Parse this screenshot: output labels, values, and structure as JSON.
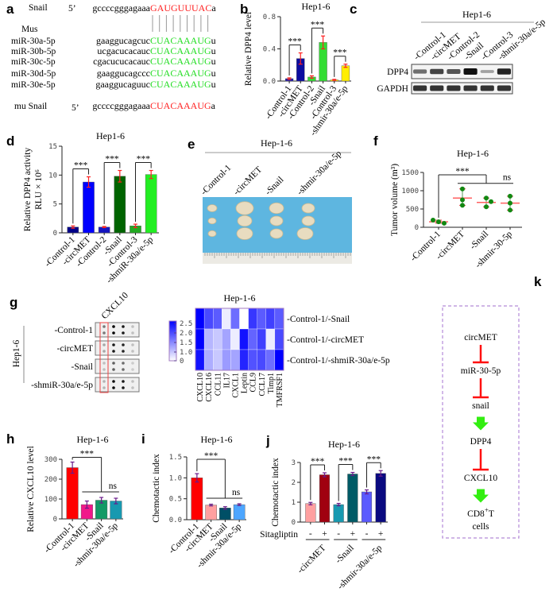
{
  "panel_labels": {
    "a": "a",
    "b": "b",
    "c": "c",
    "d": "d",
    "e": "e",
    "f": "f",
    "g": "g",
    "h": "h",
    "i": "i",
    "j": "j",
    "k": "k"
  },
  "panel_a": {
    "snail": {
      "name": "Snail",
      "five_prime": "5’",
      "prefix": "gccccgggagaaa",
      "seed": "GAUGUUUAC",
      "suffix": "a"
    },
    "species": "Mus",
    "mirnas": [
      {
        "name": "miR-30a-5p",
        "prefix": "gaaggucagcuc",
        "seed": "CUACAAAUG",
        "suffix": "u"
      },
      {
        "name": "miR-30b-5p",
        "prefix": "ucgacucacauc",
        "seed": "CUACAAAUG",
        "suffix": "u"
      },
      {
        "name": "miR-30c-5p",
        "prefix": "cgacucucacauc",
        "seed": "CUACAAAUG",
        "suffix": "u"
      },
      {
        "name": "miR-30d-5p",
        "prefix": "gaaggucagccc",
        "seed": "CUACAAAUG",
        "suffix": "u"
      },
      {
        "name": "miR-30e-5p",
        "prefix": "gaaggucaguuc",
        "seed": "CUACAAAUG",
        "suffix": "u"
      }
    ],
    "mu_snail": {
      "name": "mu  Snail",
      "five_prime": "5’",
      "prefix": "gccccgggagaaa",
      "seed": "CUACAAAUG",
      "suffix": "a"
    },
    "colors": {
      "target": "#ff2020",
      "seed": "#22dd22"
    }
  },
  "panel_c": {
    "title": "Hep1-6",
    "lanes": [
      "-Control-1",
      "-circMET",
      "-Control-2",
      "-Snail",
      "-Control-3",
      "-shmir-30a/e-5p"
    ],
    "rows": [
      {
        "label": "DPP4",
        "band_intensity": [
          0.45,
          0.7,
          0.6,
          1.0,
          0.15,
          0.9
        ]
      },
      {
        "label": "GAPDH",
        "band_intensity": [
          0.8,
          0.8,
          0.8,
          0.8,
          0.8,
          0.8
        ]
      }
    ]
  },
  "panel_e": {
    "title": "Hep-1-6",
    "lanes": [
      "-Control-1",
      "-circMET",
      "-Snail",
      "-shmir-30a/e-5p"
    ]
  },
  "panel_g": {
    "group_label": "Hep1-6",
    "column_label": "CXCL10",
    "rows": [
      "-Control-1",
      "-circMET",
      "-Snail",
      "-shmiR-30a/e-5p"
    ]
  },
  "panel_k": {
    "nodes": [
      {
        "label": "circMET"
      },
      {
        "label": "miR-30-5p"
      },
      {
        "label": "snail"
      },
      {
        "label": "DPP4"
      },
      {
        "label": "CXCL10"
      },
      {
        "label": "CD8",
        "sup": "+",
        "suffix": "T",
        "line2": "cells"
      }
    ],
    "edges": [
      "inhibit",
      "inhibit",
      "activate",
      "inhibit",
      "activate"
    ],
    "colors": {
      "inhibit": "#ff1010",
      "activate": "#33ee11",
      "border": "#b48ad8"
    }
  },
  "chart_data": [
    {
      "panel": "b",
      "type": "bar",
      "title": "Hep1-6",
      "ylabel": "Relative DPP4 level",
      "ylim": [
        0,
        0.8
      ],
      "yticks": [
        0,
        0.4,
        0.8
      ],
      "ytick_labels": [
        "0.0",
        "0.4",
        "0.8"
      ],
      "categories": [
        "-Control-1",
        "-circMET",
        "-Control-2",
        "-Snail",
        "-Control-3",
        "-shmir-30a/e-5p"
      ],
      "values": [
        0.03,
        0.28,
        0.05,
        0.48,
        0.015,
        0.19
      ],
      "errors": [
        0.01,
        0.07,
        0.015,
        0.08,
        0.006,
        0.02
      ],
      "colors": [
        "#1a1ab0",
        "#0c0ca0",
        "#33dd33",
        "#33dd33",
        "#ffee00",
        "#ffee00"
      ],
      "error_color": "#ff2020",
      "significance": [
        {
          "bars": [
            0,
            1
          ],
          "label": "***"
        },
        {
          "bars": [
            2,
            3
          ],
          "label": "***"
        },
        {
          "bars": [
            4,
            5
          ],
          "label": "***"
        }
      ]
    },
    {
      "panel": "d",
      "type": "bar",
      "title": "Hep1-6",
      "ylabel": "Relative DPP4 activity",
      "ylabel2": "RLU × 10⁶",
      "ylim": [
        0,
        15
      ],
      "yticks": [
        0,
        5,
        10,
        15
      ],
      "ytick_labels": [
        "0",
        "5",
        "10",
        "15"
      ],
      "categories": [
        "-Control-1",
        "-circMET",
        "-Control-2",
        "-Snail",
        "-Control-3",
        "-shmiR-30a/e-5p"
      ],
      "values": [
        1.0,
        8.8,
        1.0,
        9.8,
        1.2,
        10.1
      ],
      "errors": [
        0.2,
        0.9,
        0.1,
        1.0,
        0.3,
        0.7
      ],
      "colors": [
        "#000088",
        "#0000ff",
        "#1414c0",
        "#006400",
        "#22aa22",
        "#22ee22"
      ],
      "error_color": "#ff2020",
      "significance": [
        {
          "bars": [
            0,
            1
          ],
          "label": "***"
        },
        {
          "bars": [
            2,
            3
          ],
          "label": "***"
        },
        {
          "bars": [
            4,
            5
          ],
          "label": "***"
        }
      ]
    },
    {
      "panel": "f",
      "type": "scatter",
      "title": "Hep-1-6",
      "ylabel": "Tumor volume (m³)",
      "ylim": [
        0,
        1500
      ],
      "yticks": [
        0,
        500,
        1000,
        1500
      ],
      "ytick_labels": [
        "0",
        "500",
        "1000",
        "1500"
      ],
      "categories": [
        "-Control-1",
        "-circMET",
        "-Snail",
        "-shmir-30-5p"
      ],
      "points": [
        [
          195,
          150,
          110
        ],
        [
          1050,
          750,
          600
        ],
        [
          800,
          700,
          560
        ],
        [
          850,
          660,
          470
        ]
      ],
      "means": [
        150,
        800,
        680,
        660
      ],
      "point_color": "#118811",
      "mean_color": "#ff6060",
      "significance": [
        {
          "from": 0,
          "group": [
            1,
            3
          ],
          "label": "***"
        },
        {
          "group": [
            1,
            3
          ],
          "label": "ns"
        }
      ]
    },
    {
      "panel": "h",
      "type": "bar",
      "title": "Hep-1-6",
      "ylabel": "Relative CXCL10 level",
      "ylim": [
        0,
        300
      ],
      "yticks": [
        0,
        100,
        200,
        300
      ],
      "ytick_labels": [
        "0",
        "100",
        "200",
        "300"
      ],
      "categories": [
        "-Control-1",
        "-circMET",
        "-Snail",
        "-shmir-30a/e-5p"
      ],
      "values": [
        258,
        72,
        94,
        90
      ],
      "errors": [
        28,
        18,
        14,
        14
      ],
      "colors": [
        "#ff0000",
        "#f0188a",
        "#149a66",
        "#1899b0"
      ],
      "error_color": "#6a1a8a",
      "significance": [
        {
          "from": 0,
          "group": [
            1,
            3
          ],
          "label": "***"
        },
        {
          "group": [
            1,
            3
          ],
          "label": "ns"
        }
      ]
    },
    {
      "panel": "i",
      "type": "bar",
      "title": "Hep-1-6",
      "ylabel": "Chemotactic index",
      "ylim": [
        0,
        1.5
      ],
      "yticks": [
        0,
        0.5,
        1.0,
        1.5
      ],
      "ytick_labels": [
        "0.0",
        "0.5",
        "1.0",
        "1.5"
      ],
      "categories": [
        "-Control-1",
        "-circMET",
        "-Snail",
        "-shmir-30a/e-5p"
      ],
      "values": [
        1.0,
        0.35,
        0.28,
        0.36
      ],
      "errors": [
        0.1,
        0.02,
        0.03,
        0.02
      ],
      "colors": [
        "#ff0000",
        "#ffa0a0",
        "#004f66",
        "#4da6ff"
      ],
      "error_color": "#6a1a8a",
      "significance": [
        {
          "from": 0,
          "group": [
            1,
            3
          ],
          "label": "***"
        },
        {
          "group": [
            1,
            3
          ],
          "label": "ns"
        }
      ]
    },
    {
      "panel": "j",
      "type": "bar",
      "title": "Hep-1-6",
      "ylabel": "Chemotactic index",
      "ylim": [
        0,
        3
      ],
      "yticks": [
        0,
        1,
        2,
        3
      ],
      "ytick_labels": [
        "0",
        "1",
        "2",
        "3"
      ],
      "treatment_label": "Sitagliptin",
      "treatment": [
        "-",
        "+",
        "-",
        "+",
        "-",
        "+"
      ],
      "groups": [
        "-circMET",
        "-Snail",
        "-shmir-30a/e-5p"
      ],
      "values": [
        0.93,
        2.38,
        0.88,
        2.42,
        1.52,
        2.45
      ],
      "errors": [
        0.06,
        0.1,
        0.06,
        0.08,
        0.1,
        0.14
      ],
      "colors": [
        "#ffa0a0",
        "#a00010",
        "#1899b0",
        "#005a66",
        "#5a5aff",
        "#0a0a80"
      ],
      "error_color": "#6a1a8a",
      "significance": [
        {
          "bars": [
            0,
            1
          ],
          "label": "***"
        },
        {
          "bars": [
            2,
            3
          ],
          "label": "***"
        },
        {
          "bars": [
            4,
            5
          ],
          "label": "***"
        }
      ]
    },
    {
      "panel": "g",
      "type": "heatmap",
      "title": "Hep-1-6",
      "rows": [
        "-Control-1/-Snail",
        "-Control-1/-circMET",
        "-Control-1/-shmiR-30a/e-5p"
      ],
      "columns": [
        "CXCL10",
        "CXCL16",
        "CCL11",
        "IL17",
        "CXCL1",
        "Leptin",
        "CCL9",
        "CCL17",
        "Timp1",
        "TMFRSF1"
      ],
      "values": [
        [
          2.8,
          2.0,
          1.8,
          0.2,
          1.6,
          0.0,
          2.2,
          1.8,
          2.1,
          1.8
        ],
        [
          2.8,
          0.8,
          0.6,
          1.0,
          0.2,
          2.6,
          1.7,
          2.1,
          0.2,
          2.0
        ],
        [
          2.6,
          0.9,
          0.6,
          1.1,
          1.0,
          2.4,
          1.9,
          2.0,
          1.6,
          2.9
        ]
      ],
      "vmin": 0,
      "vmax": 2.8,
      "colorbar_ticks": [
        "0",
        "1.0",
        "1.5",
        "2.0",
        "2.5"
      ],
      "color_low": "#ffffff",
      "color_high": "#0000ff"
    }
  ]
}
